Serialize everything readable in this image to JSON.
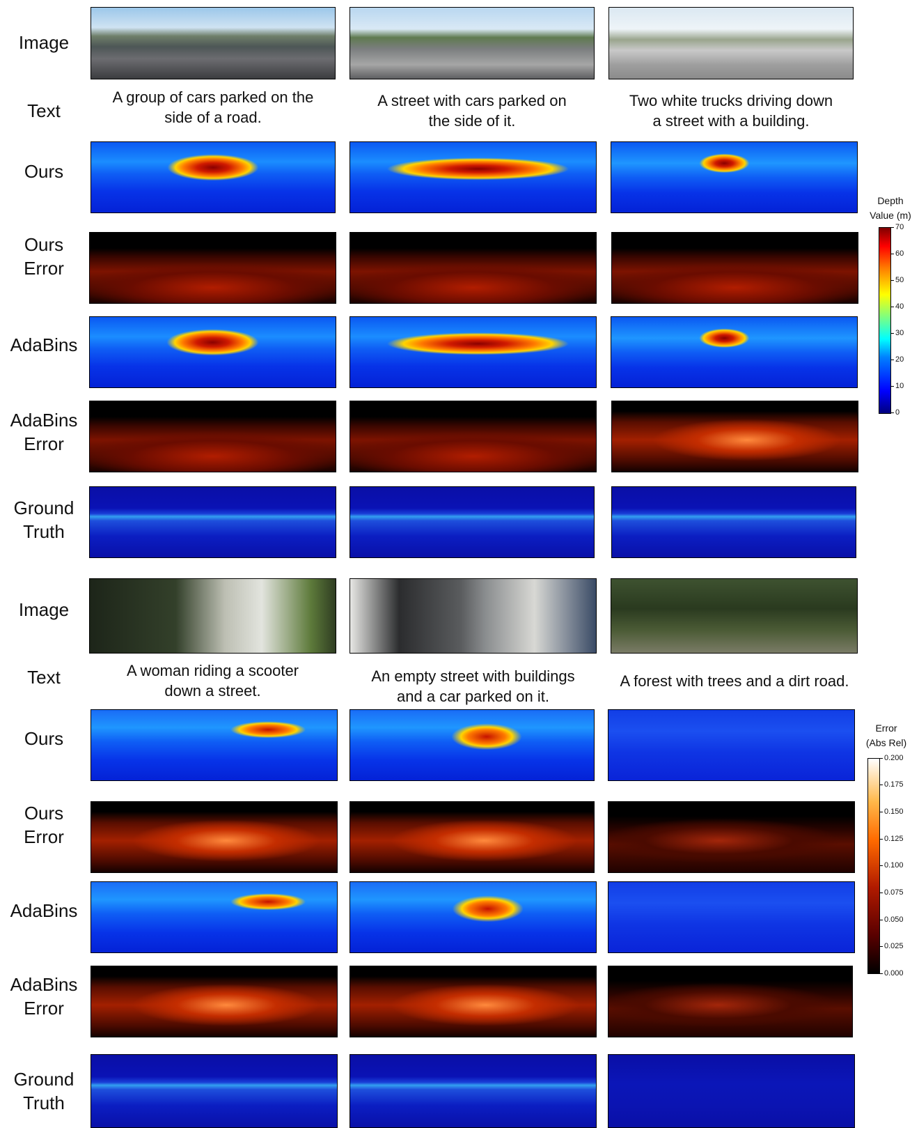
{
  "top": {
    "labels": {
      "image": "Image",
      "text": "Text",
      "ours": "Ours",
      "ours_error": "Ours\nError",
      "adabins": "AdaBins",
      "adabins_error": "AdaBins\nError",
      "ground_truth": "Ground\nTruth"
    },
    "captions": [
      "A group of cars parked on the\nside of a road.",
      "A street with cars parked on\nthe side of it.",
      "Two white trucks driving down\na street with a building."
    ]
  },
  "bottom": {
    "labels": {
      "image": "Image",
      "text": "Text",
      "ours": "Ours",
      "ours_error": "Ours\nError",
      "adabins": "AdaBins",
      "adabins_error": "AdaBins\nError",
      "ground_truth": "Ground\nTruth"
    },
    "captions": [
      "A woman riding a scooter\ndown a street.",
      "An empty street with buildings\nand a car parked on it.",
      "A forest with trees and a dirt road."
    ]
  },
  "depth_colorbar": {
    "title": "Depth\nValue (m)",
    "colormap": "jet",
    "ticks": [
      "70",
      "60",
      "50",
      "40",
      "30",
      "20",
      "10",
      "0"
    ]
  },
  "error_colorbar": {
    "title": "Error\n(Abs Rel)",
    "colormap": "afmhot",
    "ticks": [
      "0.200",
      "0.175",
      "0.150",
      "0.125",
      "0.100",
      "0.075",
      "0.050",
      "0.025",
      "0.000"
    ]
  }
}
